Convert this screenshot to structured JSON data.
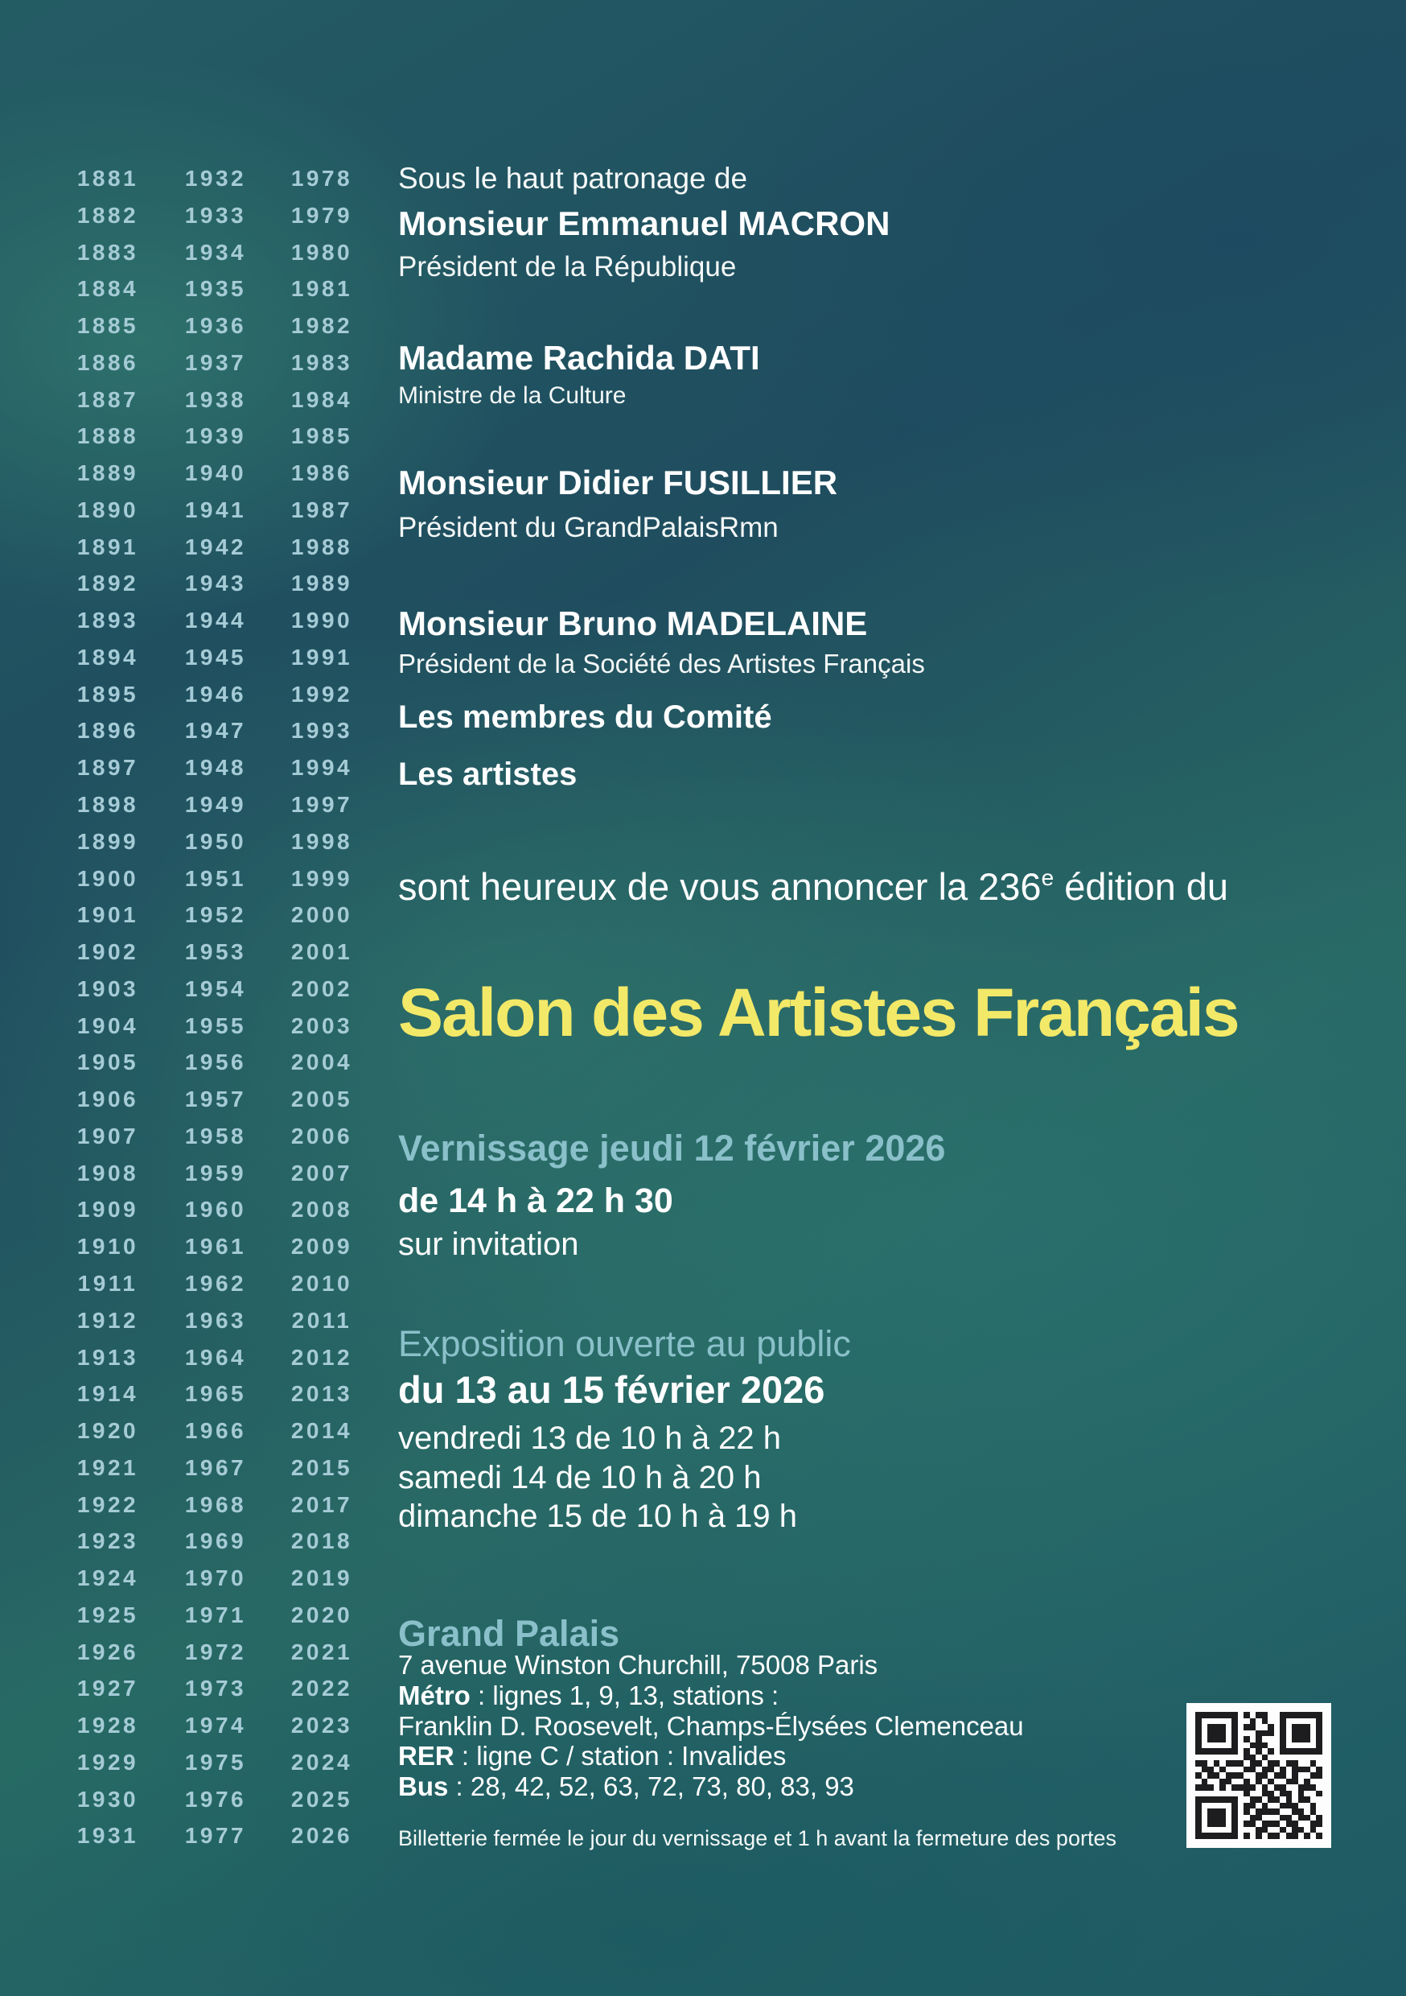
{
  "years": {
    "columns": [
      [
        "1881",
        "1882",
        "1883",
        "1884",
        "1885",
        "1886",
        "1887",
        "1888",
        "1889",
        "1890",
        "1891",
        "1892",
        "1893",
        "1894",
        "1895",
        "1896",
        "1897",
        "1898",
        "1899",
        "1900",
        "1901",
        "1902",
        "1903",
        "1904",
        "1905",
        "1906",
        "1907",
        "1908",
        "1909",
        "1910",
        "1911",
        "1912",
        "1913",
        "1914",
        "1920",
        "1921",
        "1922",
        "1923",
        "1924",
        "1925",
        "1926",
        "1927",
        "1928",
        "1929",
        "1930",
        "1931"
      ],
      [
        "1932",
        "1933",
        "1934",
        "1935",
        "1936",
        "1937",
        "1938",
        "1939",
        "1940",
        "1941",
        "1942",
        "1943",
        "1944",
        "1945",
        "1946",
        "1947",
        "1948",
        "1949",
        "1950",
        "1951",
        "1952",
        "1953",
        "1954",
        "1955",
        "1956",
        "1957",
        "1958",
        "1959",
        "1960",
        "1961",
        "1962",
        "1963",
        "1964",
        "1965",
        "1966",
        "1967",
        "1968",
        "1969",
        "1970",
        "1971",
        "1972",
        "1973",
        "1974",
        "1975",
        "1976",
        "1977"
      ],
      [
        "1978",
        "1979",
        "1980",
        "1981",
        "1982",
        "1983",
        "1984",
        "1985",
        "1986",
        "1987",
        "1988",
        "1989",
        "1990",
        "1991",
        "1992",
        "1993",
        "1994",
        "1997",
        "1998",
        "1999",
        "2000",
        "2001",
        "2002",
        "2003",
        "2004",
        "2005",
        "2006",
        "2007",
        "2008",
        "2009",
        "2010",
        "2011",
        "2012",
        "2013",
        "2014",
        "2015",
        "2017",
        "2018",
        "2019",
        "2020",
        "2021",
        "2022",
        "2023",
        "2024",
        "2025",
        "2026"
      ]
    ]
  },
  "patronage": {
    "intro": "Sous le haut patronage de",
    "macron_name": "Monsieur Emmanuel MACRON",
    "macron_title": "Président de la République",
    "dati_name": "Madame Rachida DATI",
    "dati_title": "Ministre de la Culture",
    "fusillier_name": "Monsieur Didier FUSILLIER",
    "fusillier_title": "Président du GrandPalaisRmn",
    "madelaine_name": "Monsieur Bruno MADELAINE",
    "madelaine_title": "Président de la Société des Artistes Français",
    "group_comite": "Les membres du Comité",
    "group_artistes": "Les artistes"
  },
  "announcement": {
    "prefix": "sont heureux de vous annoncer la 236",
    "sup": "e",
    "suffix": " édition du"
  },
  "title": "Salon des Artistes Français",
  "vernissage": {
    "heading": "Vernissage jeudi 12 février 2026",
    "time": "de 14 h à 22 h 30",
    "note": "sur invitation"
  },
  "exposition": {
    "heading": "Exposition ouverte au public",
    "dates": "du 13 au 15 février 2026",
    "schedule": [
      "vendredi 13 de 10 h à 22 h",
      "samedi 14 de 10 h à 20 h",
      "dimanche 15 de 10 h à 19 h"
    ]
  },
  "venue": {
    "name": "Grand Palais",
    "address": "7 avenue Winston Churchill, 75008 Paris",
    "metro_label": "Métro",
    "metro_rest": " : lignes 1, 9, 13, stations :",
    "stations": "Franklin D. Roosevelt, Champs-Élysées Clemenceau",
    "rer_label": "RER",
    "rer_rest": " : ligne C / station : Invalides",
    "bus_label": "Bus",
    "bus_rest": " : 28, 42, 52, 63, 72, 73, 80, 83, 93"
  },
  "footer": "Billetterie fermée le jour du vernissage et 1 h avant la fermeture des portes",
  "colors": {
    "background_dark_blue": "#1f4d5f",
    "background_green": "#2b7672",
    "year_text": "#a5cbd6",
    "accent_cyan": "#8ac0ca",
    "title_yellow": "#f3e968",
    "body_white": "#ffffff"
  },
  "qr": {
    "icon": "qr-code",
    "modules": [
      "111111101011001111111",
      "100000100101001000001",
      "101110101100101011101",
      "101110100011101011101",
      "101110101010001011101",
      "100000100111001000001",
      "111111101010101111111",
      "000000001101000000000",
      "110101110110110110010",
      "011010001101101011101",
      "101101110011011010011",
      "010011001010100110100",
      "111010111101011001110",
      "000000001001101101001",
      "111111100110110101100",
      "100000101101001110010",
      "101110101011110011010",
      "101110100110001101101",
      "101110101101110110011",
      "100000100011001011010",
      "111111101010110110101"
    ]
  }
}
